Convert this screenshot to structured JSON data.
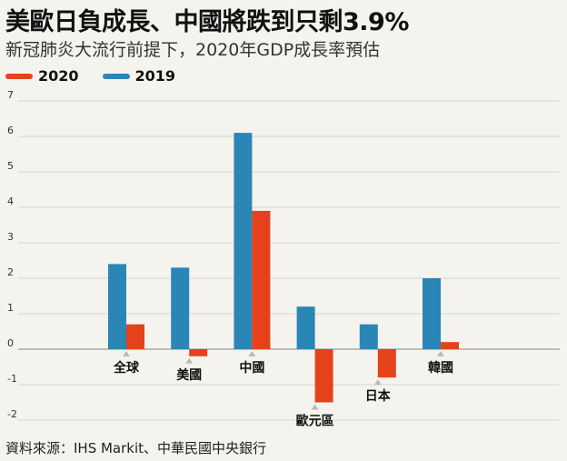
{
  "title": "美歐日負成長、中國將跌到只剩3.9%",
  "subtitle": "新冠肺炎大流行前提下，2020年GDP成長率預估",
  "source": "資料來源：IHS Markit、中華民國中央銀行",
  "colors": {
    "s2020": "#e5421c",
    "s2019": "#2a86b5",
    "background": "#f5f3ee"
  },
  "chart_data": {
    "type": "bar",
    "categories": [
      "全球",
      "美國",
      "中國",
      "歐元區",
      "日本",
      "韓國"
    ],
    "series": [
      {
        "name": "2020",
        "values": [
          0.7,
          -0.2,
          3.9,
          -1.5,
          -0.8,
          0.2
        ]
      },
      {
        "name": "2019",
        "values": [
          2.4,
          2.3,
          6.1,
          1.2,
          0.7,
          2.0
        ]
      }
    ],
    "ylim": [
      -2,
      7
    ],
    "yticks": [
      "-2",
      "-1",
      "0",
      "1",
      "2",
      "3",
      "4",
      "5",
      "6",
      "7"
    ],
    "grid": true,
    "legend": "top-left"
  }
}
